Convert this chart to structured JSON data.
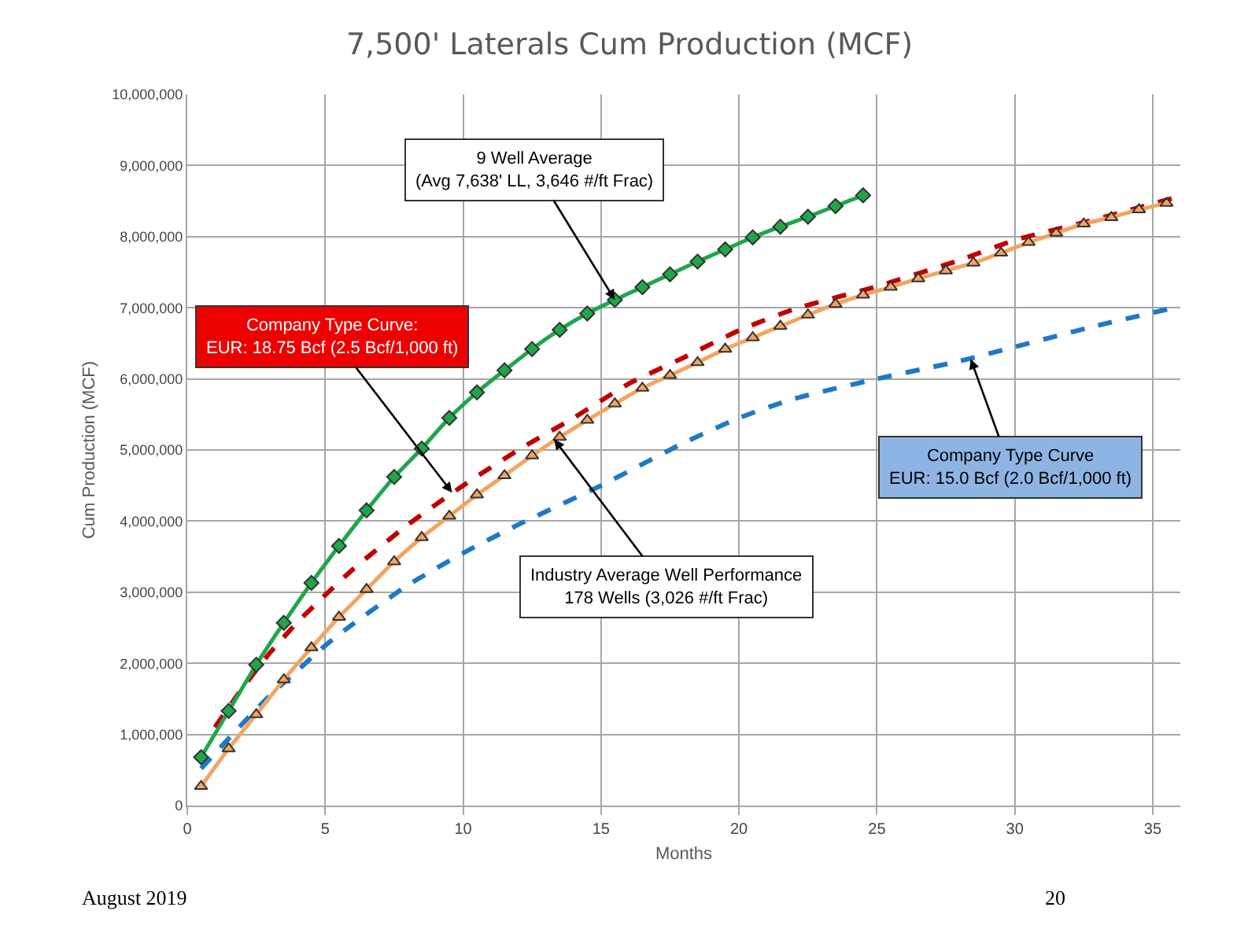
{
  "chart_data": {
    "type": "line",
    "title": "7,500' Laterals Cum Production (MCF)",
    "xlabel": "Months",
    "ylabel": "Cum Production (MCF)",
    "xlim": [
      0,
      36
    ],
    "xticks": [
      0,
      5,
      10,
      15,
      20,
      25,
      30,
      35
    ],
    "ylim": [
      0,
      10000000
    ],
    "yticks": [
      {
        "value": 0,
        "label": "0"
      },
      {
        "value": 1000000,
        "label": "1,000,000"
      },
      {
        "value": 2000000,
        "label": "2,000,000"
      },
      {
        "value": 3000000,
        "label": "3,000,000"
      },
      {
        "value": 4000000,
        "label": "4,000,000"
      },
      {
        "value": 5000000,
        "label": "5,000,000"
      },
      {
        "value": 6000000,
        "label": "6,000,000"
      },
      {
        "value": 7000000,
        "label": "7,000,000"
      },
      {
        "value": 8000000,
        "label": "8,000,000"
      },
      {
        "value": 9000000,
        "label": "9,000,000"
      },
      {
        "value": 10000000,
        "label": "10,000,000"
      }
    ],
    "grid": true,
    "series": [
      {
        "color": "#1f78c8",
        "line_style": "dashed",
        "marker": "none",
        "x": [
          0.5,
          2,
          3,
          4,
          5,
          6,
          8,
          10,
          12,
          15,
          18,
          20,
          22,
          25,
          28,
          30,
          33,
          36
        ],
        "values": [
          520000,
          1150000,
          1550000,
          1900000,
          2250000,
          2550000,
          3100000,
          3550000,
          3950000,
          4500000,
          5100000,
          5450000,
          5720000,
          6000000,
          6250000,
          6450000,
          6750000,
          7020000
        ]
      },
      {
        "color": "#c00000",
        "line_style": "dashed",
        "marker": "none",
        "x": [
          1,
          2,
          3,
          4,
          5,
          6,
          8,
          10,
          12,
          14,
          16,
          18,
          20,
          22,
          25,
          28,
          30,
          33,
          36
        ],
        "values": [
          1100000,
          1650000,
          2150000,
          2580000,
          2960000,
          3320000,
          3950000,
          4500000,
          5000000,
          5450000,
          5930000,
          6300000,
          6680000,
          6980000,
          7300000,
          7670000,
          7950000,
          8250000,
          8570000
        ]
      },
      {
        "color": "#f4a460",
        "line_style": "solid",
        "marker": "triangle",
        "x": [
          0.5,
          1.5,
          2.5,
          3.5,
          4.5,
          5.5,
          6.5,
          7.5,
          8.5,
          9.5,
          10.5,
          11.5,
          12.5,
          13.5,
          14.5,
          15.5,
          16.5,
          17.5,
          18.5,
          19.5,
          20.5,
          21.5,
          22.5,
          23.5,
          24.5,
          25.5,
          26.5,
          27.5,
          28.5,
          29.5,
          30.5,
          31.5,
          32.5,
          33.5,
          34.5,
          35.5
        ],
        "values": [
          270000,
          800000,
          1280000,
          1770000,
          2220000,
          2650000,
          3040000,
          3430000,
          3770000,
          4070000,
          4370000,
          4640000,
          4920000,
          5180000,
          5420000,
          5650000,
          5870000,
          6050000,
          6230000,
          6420000,
          6580000,
          6740000,
          6900000,
          7050000,
          7180000,
          7290000,
          7410000,
          7520000,
          7630000,
          7770000,
          7920000,
          8050000,
          8180000,
          8270000,
          8380000,
          8470000
        ]
      },
      {
        "color": "#1fa64a",
        "line_style": "solid",
        "marker": "diamond",
        "x": [
          0.5,
          1.5,
          2.5,
          3.5,
          4.5,
          5.5,
          6.5,
          7.5,
          8.5,
          9.5,
          10.5,
          11.5,
          12.5,
          13.5,
          14.5,
          15.5,
          16.5,
          17.5,
          18.5,
          19.5,
          20.5,
          21.5,
          22.5,
          23.5,
          24.5
        ],
        "values": [
          680000,
          1330000,
          1980000,
          2570000,
          3130000,
          3650000,
          4150000,
          4620000,
          5020000,
          5450000,
          5810000,
          6120000,
          6420000,
          6690000,
          6920000,
          7110000,
          7290000,
          7470000,
          7650000,
          7820000,
          7990000,
          8140000,
          8280000,
          8430000,
          8580000
        ]
      }
    ],
    "annotations": [
      {
        "text": "9 Well Average\n(Avg 7,638' LL, 3,646 #/ft Frac)",
        "x": 15.5,
        "y": 7110000
      },
      {
        "text": "Company Type Curve:\nEUR: 18.75 Bcf (2.5 Bcf/1,000 ft)",
        "x": 9.6,
        "y": 4400000
      },
      {
        "text": "Industry Average Well Performance\n178 Wells (3,026 #/ft Frac)",
        "x": 13.3,
        "y": 5150000
      },
      {
        "text": "Company Type Curve\nEUR: 15.0 Bcf (2.0 Bcf/1,000 ft)",
        "x": 28.4,
        "y": 6280000
      },
      "August 2019",
      "20"
    ]
  }
}
